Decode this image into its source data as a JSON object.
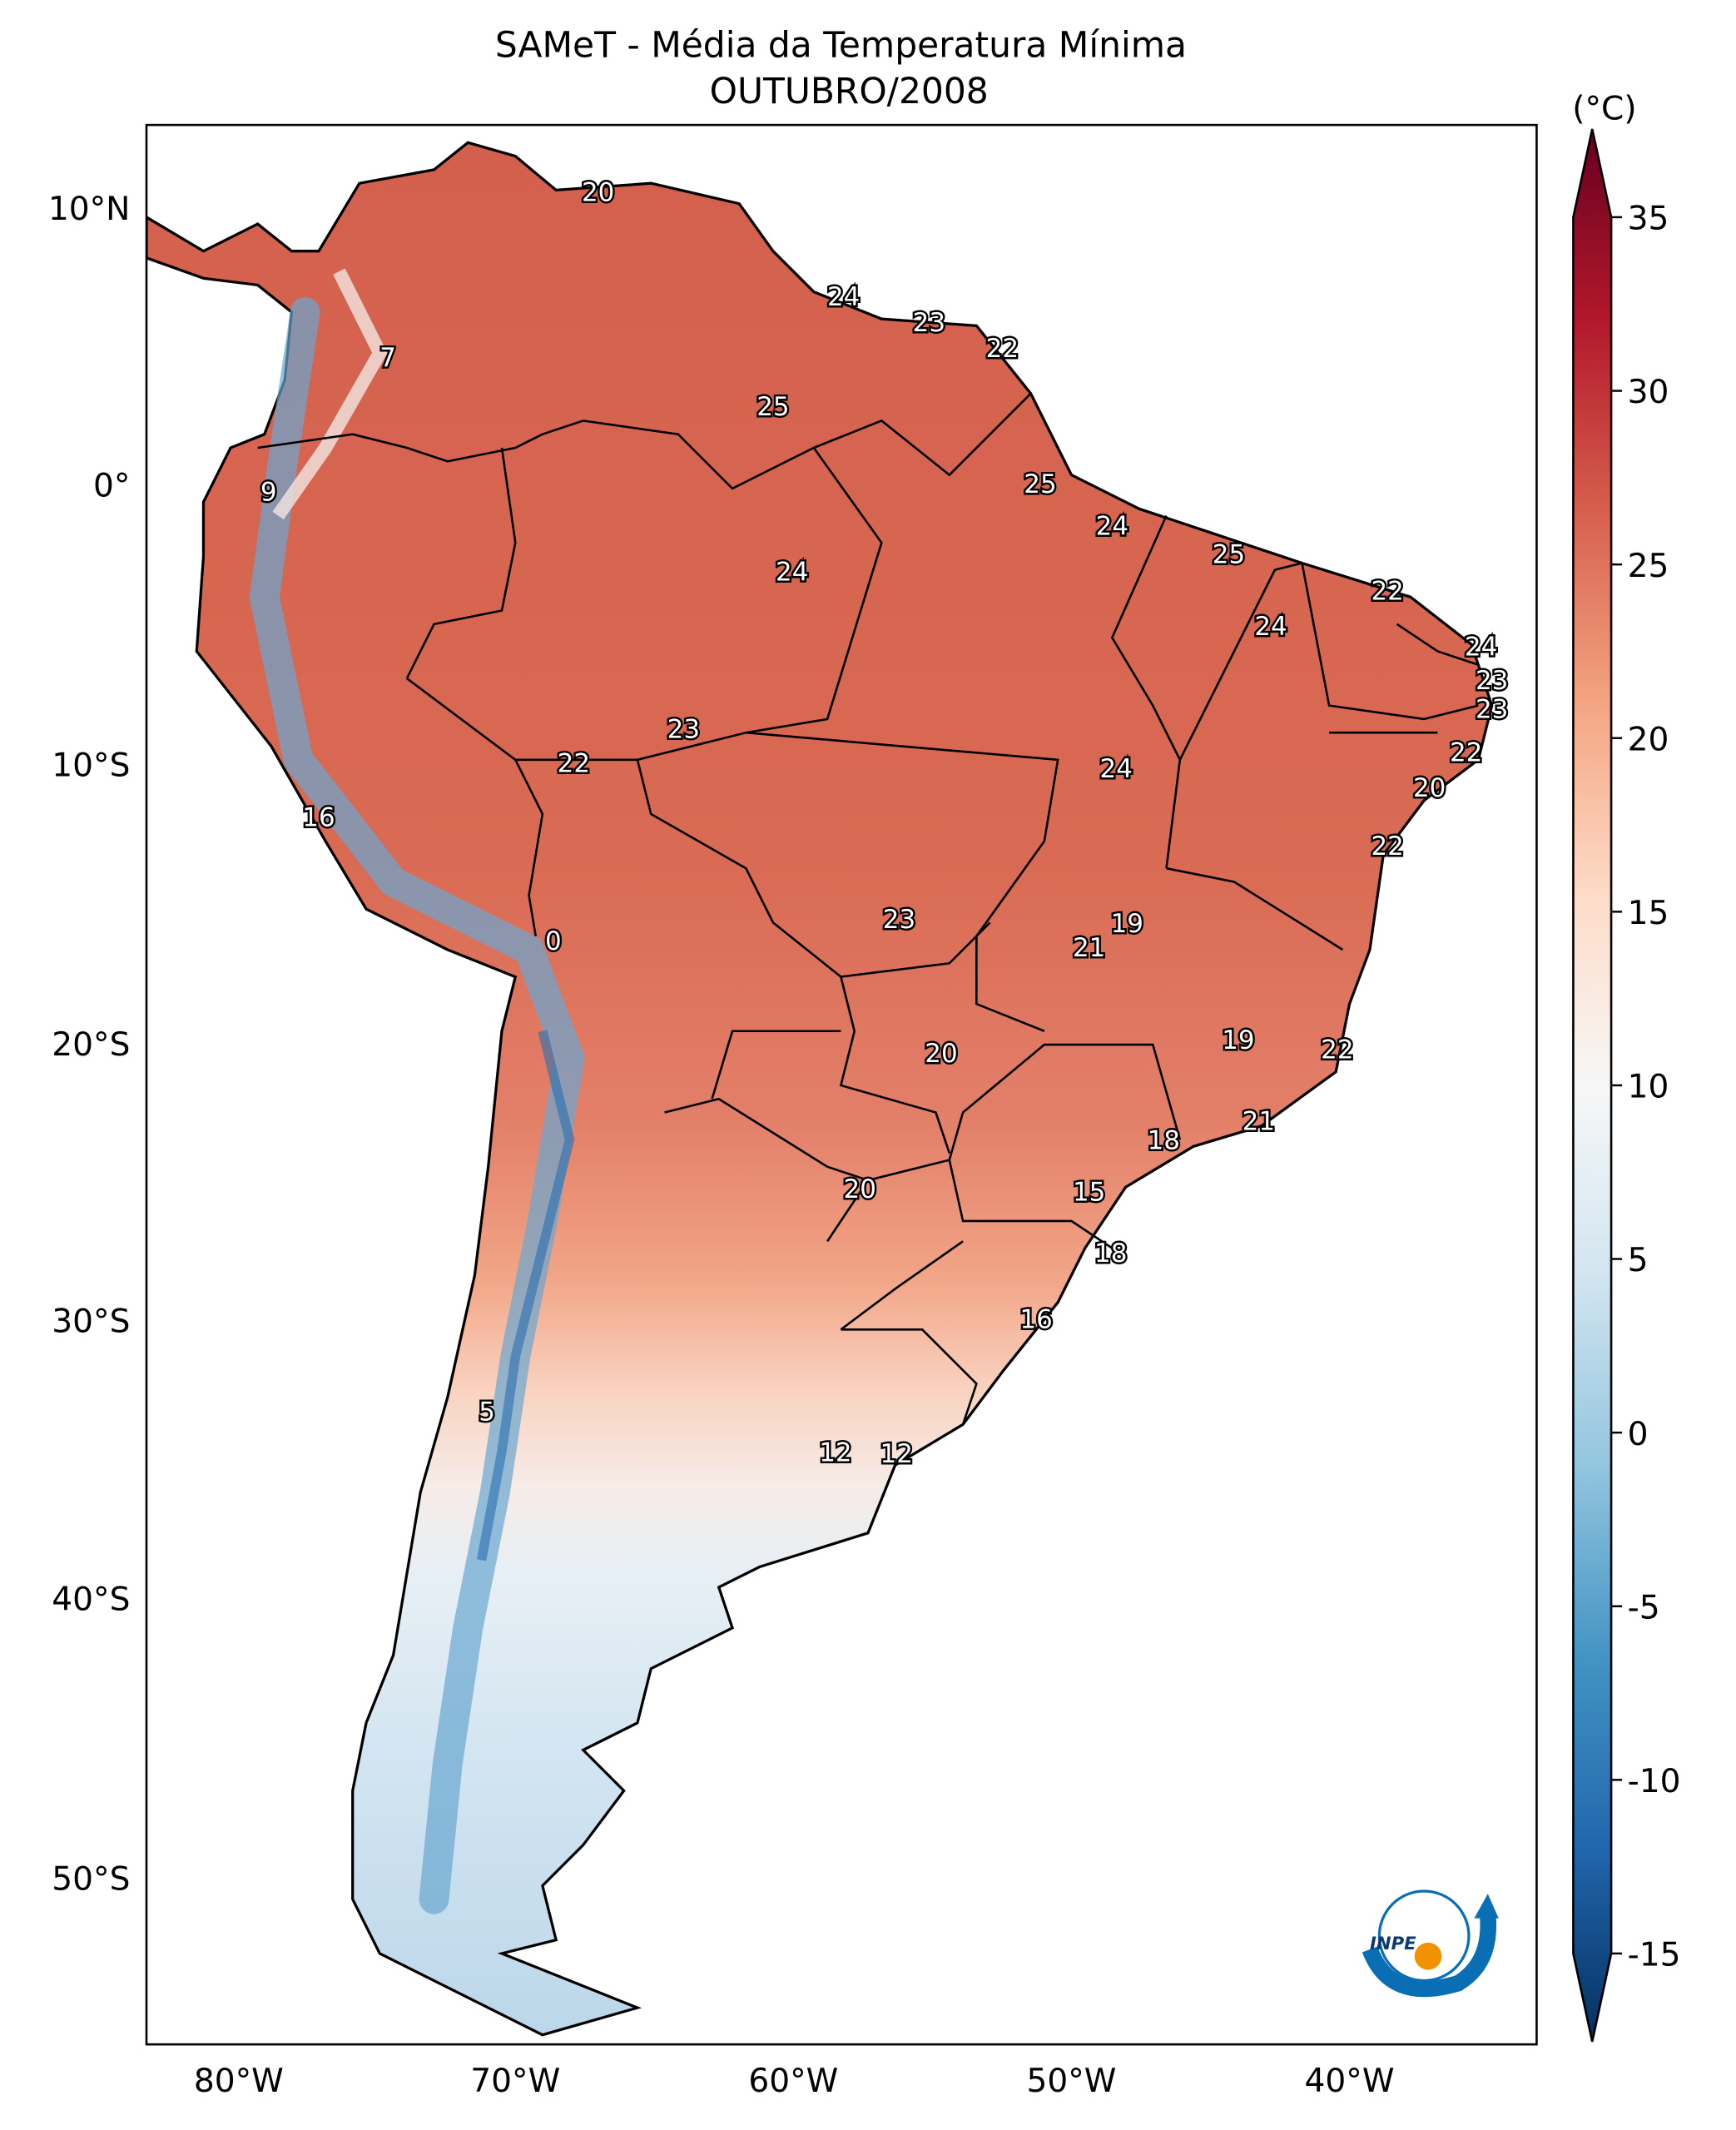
{
  "title": "SAMeT - Média da Temperatura Mínima",
  "subtitle": "OUTUBRO/2008",
  "colorbar": {
    "unit": "(°C)",
    "ticks": [
      "35",
      "30",
      "25",
      "20",
      "15",
      "10",
      "5",
      "0",
      "-5",
      "-10",
      "-15"
    ],
    "range": [
      -15,
      35
    ],
    "extend": "both",
    "colormap": "RdBu_r",
    "colors": [
      "#053061",
      "#2166ac",
      "#4393c3",
      "#92c5de",
      "#d1e5f0",
      "#f7f7f7",
      "#fddbc7",
      "#f4a582",
      "#d6604d",
      "#b2182b",
      "#67001f"
    ]
  },
  "axes": {
    "lat_labels": [
      "10°N",
      "0°",
      "10°S",
      "20°S",
      "30°S",
      "40°S",
      "50°S"
    ],
    "lon_labels": [
      "80°W",
      "70°W",
      "60°W",
      "50°W",
      "40°W"
    ]
  },
  "contour_labels": [
    "20",
    "24",
    "23",
    "22",
    "7",
    "25",
    "25",
    "9",
    "24",
    "25",
    "24",
    "22",
    "24",
    "24",
    "23",
    "23",
    "23",
    "22",
    "22",
    "24",
    "20",
    "16",
    "22",
    "23",
    "19",
    "0",
    "21",
    "19",
    "20",
    "22",
    "21",
    "18",
    "20",
    "15",
    "18",
    "16",
    "5",
    "12",
    "12"
  ],
  "logo": {
    "text": "INPE",
    "colors": [
      "#0a6eb4",
      "#f39200"
    ]
  }
}
